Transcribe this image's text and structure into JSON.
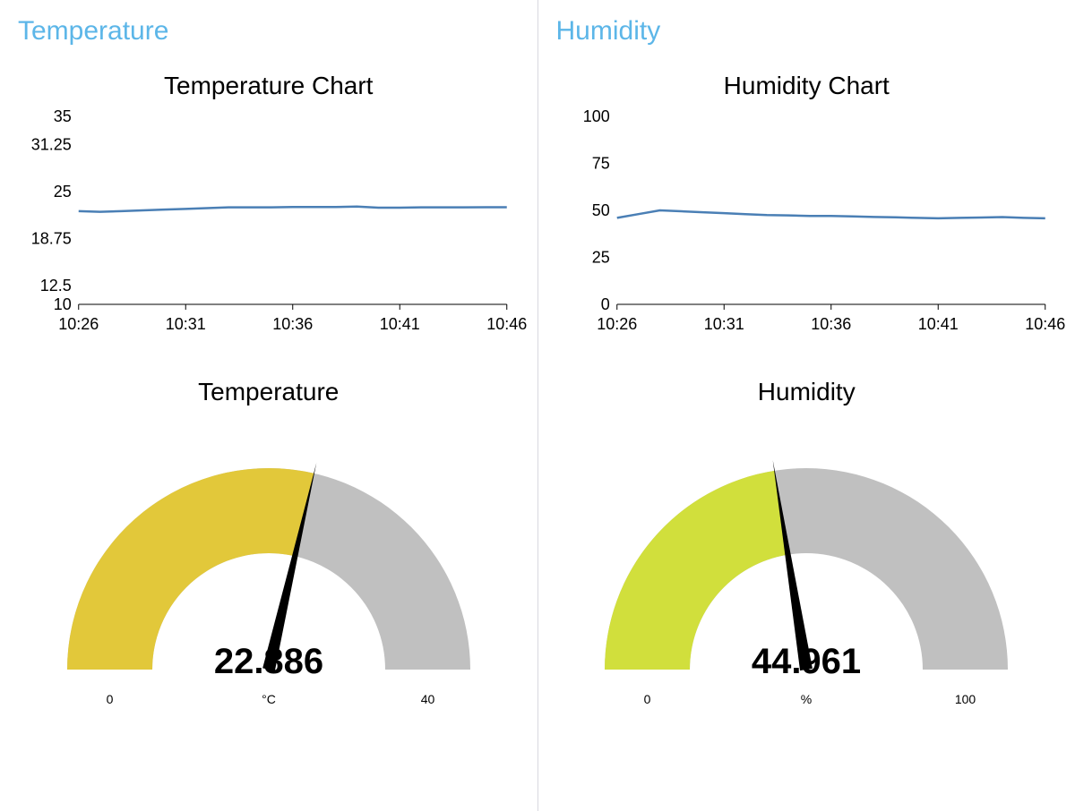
{
  "colors": {
    "title_blue": "#5cb6e8",
    "text": "#000000",
    "axis": "#000000",
    "line_series": "#4a7fb5",
    "gauge_track": "#c0c0c0",
    "gauge_needle": "#000000",
    "divider": "#d9d9df",
    "background": "#ffffff"
  },
  "panels": {
    "temperature": {
      "title": "Temperature",
      "chart": {
        "type": "line",
        "title": "Temperature Chart",
        "y_ticks": [
          10,
          12.5,
          18.75,
          25,
          31.25,
          35
        ],
        "y_tick_labels": [
          "10",
          "12.5",
          "18.75",
          "25",
          "31.25",
          "35"
        ],
        "ylim": [
          10,
          35
        ],
        "x_ticks": [
          "10:26",
          "10:31",
          "10:36",
          "10:41",
          "10:46"
        ],
        "x_idx": [
          0,
          5,
          10,
          15,
          20
        ],
        "n_points": 21,
        "values": [
          22.4,
          22.3,
          22.4,
          22.5,
          22.6,
          22.7,
          22.8,
          22.9,
          22.9,
          22.9,
          22.95,
          22.95,
          22.95,
          23.0,
          22.85,
          22.85,
          22.9,
          22.9,
          22.9,
          22.92,
          22.92
        ],
        "line_color": "#4a7fb5",
        "line_width": 2.5
      },
      "gauge": {
        "title": "Temperature",
        "value": 22.886,
        "display_value": "22.886",
        "min": 0,
        "max": 40,
        "min_label": "0",
        "max_label": "40",
        "unit": "°C",
        "fill_color": "#e2c83a",
        "track_color": "#c0c0c0"
      }
    },
    "humidity": {
      "title": "Humidity",
      "chart": {
        "type": "line",
        "title": "Humidity Chart",
        "y_ticks": [
          0,
          25,
          50,
          75,
          100
        ],
        "y_tick_labels": [
          "0",
          "25",
          "50",
          "75",
          "100"
        ],
        "ylim": [
          0,
          100
        ],
        "x_ticks": [
          "10:26",
          "10:31",
          "10:36",
          "10:41",
          "10:46"
        ],
        "x_idx": [
          0,
          5,
          10,
          15,
          20
        ],
        "n_points": 21,
        "values": [
          46,
          48,
          50,
          49.5,
          49,
          48.5,
          48,
          47.5,
          47.3,
          47,
          47,
          46.8,
          46.5,
          46.3,
          46,
          45.8,
          46,
          46.2,
          46.4,
          46,
          45.8
        ],
        "line_color": "#4a7fb5",
        "line_width": 2.5
      },
      "gauge": {
        "title": "Humidity",
        "value": 44.961,
        "display_value": "44.961",
        "min": 0,
        "max": 100,
        "min_label": "0",
        "max_label": "100",
        "unit": "%",
        "fill_color": "#d1df3c",
        "track_color": "#c0c0c0"
      }
    }
  }
}
